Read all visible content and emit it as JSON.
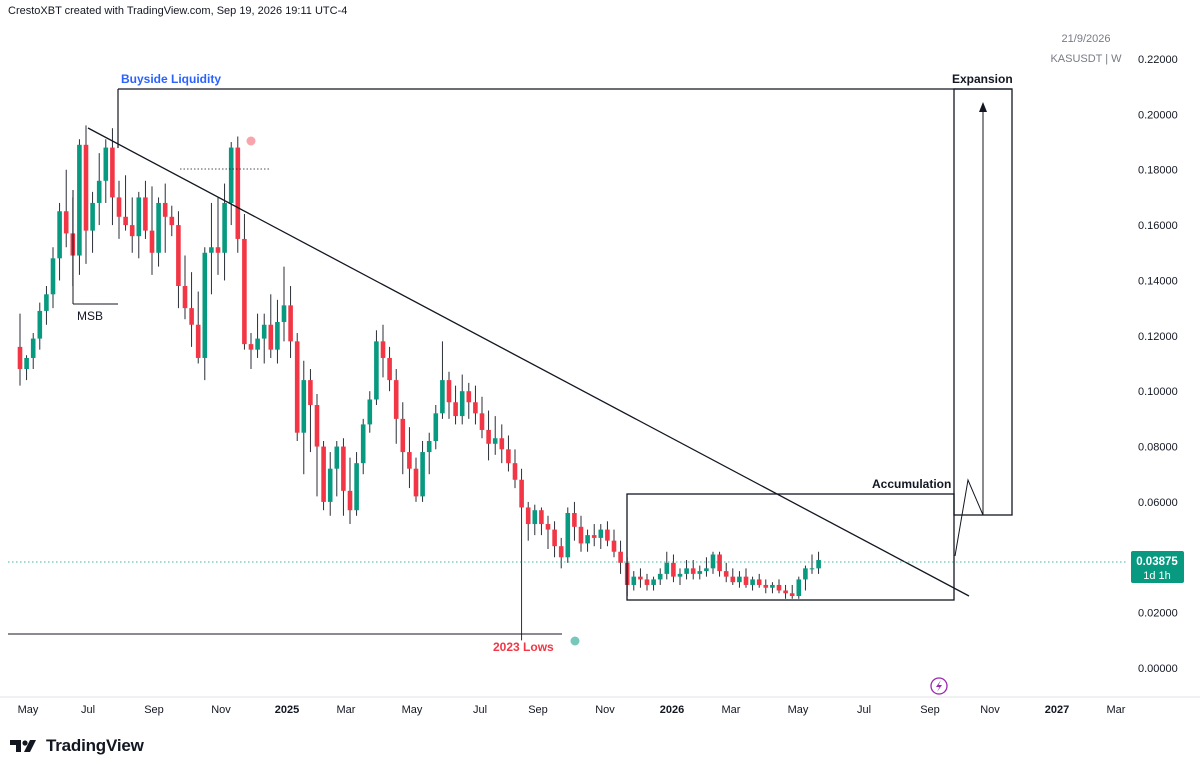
{
  "header": {
    "attribution": "CrestoXBT created with TradingView.com, Sep 19, 2026 19:11 UTC-4",
    "date_stamp": "21/9/2026",
    "symbol": "KASUSDT | W"
  },
  "brand": {
    "name": "TradingView",
    "icon": "tradingview-logo-icon"
  },
  "price_tag": {
    "value": "0.03875",
    "countdown": "1d 1h",
    "color": "#089981"
  },
  "colors": {
    "up": "#089981",
    "down": "#f23645",
    "line": "#131722",
    "blue_label": "#2962ff",
    "red_label": "#f23645"
  },
  "annotations": {
    "buyside": "Buyside Liquidity",
    "msb": "MSB",
    "lows": "2023 Lows",
    "accumulation": "Accumulation",
    "expansion": "Expansion"
  },
  "chart_data": {
    "type": "candlestick",
    "symbol": "KASUSDT",
    "interval": "W",
    "grid": false,
    "ylim": [
      0,
      0.22
    ],
    "y_ticks": [
      "0.22000",
      "0.20000",
      "0.18000",
      "0.16000",
      "0.14000",
      "0.12000",
      "0.10000",
      "0.08000",
      "0.06000",
      "0.04000",
      "0.02000",
      "0.00000"
    ],
    "x_ticks": [
      "May",
      "Jul",
      "Sep",
      "Nov",
      "2025",
      "Mar",
      "May",
      "Jul",
      "Sep",
      "Nov",
      "2026",
      "Mar",
      "May",
      "Jul",
      "Sep",
      "Nov",
      "2027",
      "Mar"
    ],
    "bold_ticks": [
      "2025",
      "2026",
      "2027"
    ],
    "last_price": 0.03875,
    "candles": [
      [
        0.116,
        0.128,
        0.102,
        0.108
      ],
      [
        0.108,
        0.113,
        0.104,
        0.112
      ],
      [
        0.112,
        0.121,
        0.108,
        0.119
      ],
      [
        0.119,
        0.132,
        0.115,
        0.129
      ],
      [
        0.129,
        0.138,
        0.124,
        0.135
      ],
      [
        0.135,
        0.152,
        0.13,
        0.148
      ],
      [
        0.148,
        0.168,
        0.14,
        0.165
      ],
      [
        0.165,
        0.18,
        0.152,
        0.157
      ],
      [
        0.157,
        0.17,
        0.138,
        0.149
      ],
      [
        0.149,
        0.191,
        0.142,
        0.189
      ],
      [
        0.189,
        0.196,
        0.146,
        0.158
      ],
      [
        0.158,
        0.172,
        0.15,
        0.168
      ],
      [
        0.168,
        0.186,
        0.16,
        0.176
      ],
      [
        0.176,
        0.191,
        0.168,
        0.188
      ],
      [
        0.188,
        0.195,
        0.16,
        0.17
      ],
      [
        0.17,
        0.176,
        0.155,
        0.163
      ],
      [
        0.163,
        0.178,
        0.158,
        0.16
      ],
      [
        0.16,
        0.17,
        0.15,
        0.156
      ],
      [
        0.156,
        0.172,
        0.148,
        0.17
      ],
      [
        0.17,
        0.176,
        0.155,
        0.158
      ],
      [
        0.158,
        0.174,
        0.142,
        0.15
      ],
      [
        0.15,
        0.17,
        0.145,
        0.168
      ],
      [
        0.168,
        0.175,
        0.15,
        0.163
      ],
      [
        0.163,
        0.167,
        0.156,
        0.16
      ],
      [
        0.16,
        0.165,
        0.13,
        0.138
      ],
      [
        0.138,
        0.149,
        0.126,
        0.13
      ],
      [
        0.13,
        0.143,
        0.116,
        0.124
      ],
      [
        0.124,
        0.136,
        0.11,
        0.112
      ],
      [
        0.112,
        0.152,
        0.104,
        0.15
      ],
      [
        0.15,
        0.168,
        0.135,
        0.152
      ],
      [
        0.152,
        0.17,
        0.142,
        0.15
      ],
      [
        0.15,
        0.175,
        0.14,
        0.168
      ],
      [
        0.168,
        0.19,
        0.16,
        0.188
      ],
      [
        0.188,
        0.192,
        0.15,
        0.155
      ],
      [
        0.155,
        0.164,
        0.115,
        0.117
      ],
      [
        0.117,
        0.121,
        0.108,
        0.115
      ],
      [
        0.115,
        0.128,
        0.112,
        0.119
      ],
      [
        0.119,
        0.128,
        0.11,
        0.124
      ],
      [
        0.124,
        0.135,
        0.112,
        0.115
      ],
      [
        0.115,
        0.133,
        0.11,
        0.125
      ],
      [
        0.125,
        0.145,
        0.118,
        0.131
      ],
      [
        0.131,
        0.138,
        0.112,
        0.118
      ],
      [
        0.118,
        0.121,
        0.082,
        0.085
      ],
      [
        0.085,
        0.111,
        0.07,
        0.104
      ],
      [
        0.104,
        0.108,
        0.078,
        0.095
      ],
      [
        0.095,
        0.099,
        0.062,
        0.08
      ],
      [
        0.08,
        0.082,
        0.057,
        0.06
      ],
      [
        0.06,
        0.078,
        0.055,
        0.072
      ],
      [
        0.072,
        0.082,
        0.062,
        0.08
      ],
      [
        0.08,
        0.083,
        0.055,
        0.064
      ],
      [
        0.064,
        0.076,
        0.052,
        0.057
      ],
      [
        0.057,
        0.078,
        0.055,
        0.074
      ],
      [
        0.074,
        0.09,
        0.07,
        0.088
      ],
      [
        0.088,
        0.1,
        0.085,
        0.097
      ],
      [
        0.097,
        0.122,
        0.095,
        0.118
      ],
      [
        0.118,
        0.124,
        0.105,
        0.112
      ],
      [
        0.112,
        0.116,
        0.1,
        0.104
      ],
      [
        0.104,
        0.108,
        0.081,
        0.09
      ],
      [
        0.09,
        0.096,
        0.07,
        0.078
      ],
      [
        0.078,
        0.087,
        0.065,
        0.072
      ],
      [
        0.072,
        0.076,
        0.06,
        0.062
      ],
      [
        0.062,
        0.082,
        0.06,
        0.078
      ],
      [
        0.078,
        0.085,
        0.07,
        0.082
      ],
      [
        0.082,
        0.095,
        0.079,
        0.092
      ],
      [
        0.092,
        0.118,
        0.09,
        0.104
      ],
      [
        0.104,
        0.107,
        0.09,
        0.096
      ],
      [
        0.096,
        0.102,
        0.088,
        0.091
      ],
      [
        0.091,
        0.106,
        0.088,
        0.1
      ],
      [
        0.1,
        0.103,
        0.09,
        0.096
      ],
      [
        0.096,
        0.102,
        0.088,
        0.092
      ],
      [
        0.092,
        0.098,
        0.083,
        0.086
      ],
      [
        0.086,
        0.093,
        0.075,
        0.081
      ],
      [
        0.081,
        0.091,
        0.077,
        0.083
      ],
      [
        0.083,
        0.088,
        0.074,
        0.079
      ],
      [
        0.079,
        0.084,
        0.071,
        0.074
      ],
      [
        0.074,
        0.079,
        0.065,
        0.068
      ],
      [
        0.068,
        0.072,
        0.01,
        0.058
      ],
      [
        0.058,
        0.06,
        0.046,
        0.052
      ],
      [
        0.052,
        0.059,
        0.048,
        0.057
      ],
      [
        0.057,
        0.058,
        0.048,
        0.052
      ],
      [
        0.052,
        0.055,
        0.043,
        0.05
      ],
      [
        0.05,
        0.053,
        0.04,
        0.044
      ],
      [
        0.044,
        0.047,
        0.036,
        0.04
      ],
      [
        0.04,
        0.058,
        0.038,
        0.056
      ],
      [
        0.056,
        0.06,
        0.046,
        0.051
      ],
      [
        0.051,
        0.055,
        0.042,
        0.045
      ],
      [
        0.045,
        0.05,
        0.042,
        0.048
      ],
      [
        0.048,
        0.052,
        0.044,
        0.047
      ],
      [
        0.047,
        0.052,
        0.043,
        0.05
      ],
      [
        0.05,
        0.053,
        0.044,
        0.046
      ],
      [
        0.046,
        0.05,
        0.04,
        0.042
      ],
      [
        0.042,
        0.046,
        0.034,
        0.038
      ],
      [
        0.038,
        0.04,
        0.026,
        0.03
      ],
      [
        0.03,
        0.035,
        0.028,
        0.033
      ],
      [
        0.033,
        0.036,
        0.029,
        0.032
      ],
      [
        0.032,
        0.034,
        0.028,
        0.03
      ],
      [
        0.03,
        0.033,
        0.028,
        0.032
      ],
      [
        0.032,
        0.036,
        0.03,
        0.034
      ],
      [
        0.034,
        0.042,
        0.032,
        0.038
      ],
      [
        0.038,
        0.041,
        0.031,
        0.033
      ],
      [
        0.033,
        0.036,
        0.03,
        0.034
      ],
      [
        0.034,
        0.039,
        0.032,
        0.036
      ],
      [
        0.036,
        0.039,
        0.032,
        0.034
      ],
      [
        0.034,
        0.037,
        0.032,
        0.035
      ],
      [
        0.035,
        0.04,
        0.033,
        0.036
      ],
      [
        0.036,
        0.042,
        0.034,
        0.041
      ],
      [
        0.041,
        0.042,
        0.033,
        0.035
      ],
      [
        0.035,
        0.038,
        0.031,
        0.033
      ],
      [
        0.033,
        0.036,
        0.03,
        0.031
      ],
      [
        0.031,
        0.035,
        0.029,
        0.033
      ],
      [
        0.033,
        0.036,
        0.029,
        0.03
      ],
      [
        0.03,
        0.033,
        0.028,
        0.032
      ],
      [
        0.032,
        0.034,
        0.029,
        0.03
      ],
      [
        0.03,
        0.032,
        0.027,
        0.029
      ],
      [
        0.029,
        0.031,
        0.027,
        0.03
      ],
      [
        0.03,
        0.032,
        0.027,
        0.028
      ],
      [
        0.028,
        0.03,
        0.025,
        0.027
      ],
      [
        0.027,
        0.03,
        0.025,
        0.026
      ],
      [
        0.026,
        0.033,
        0.025,
        0.032
      ],
      [
        0.032,
        0.037,
        0.028,
        0.036
      ],
      [
        0.036,
        0.041,
        0.034,
        0.036
      ],
      [
        0.036,
        0.042,
        0.034,
        0.039
      ]
    ]
  }
}
